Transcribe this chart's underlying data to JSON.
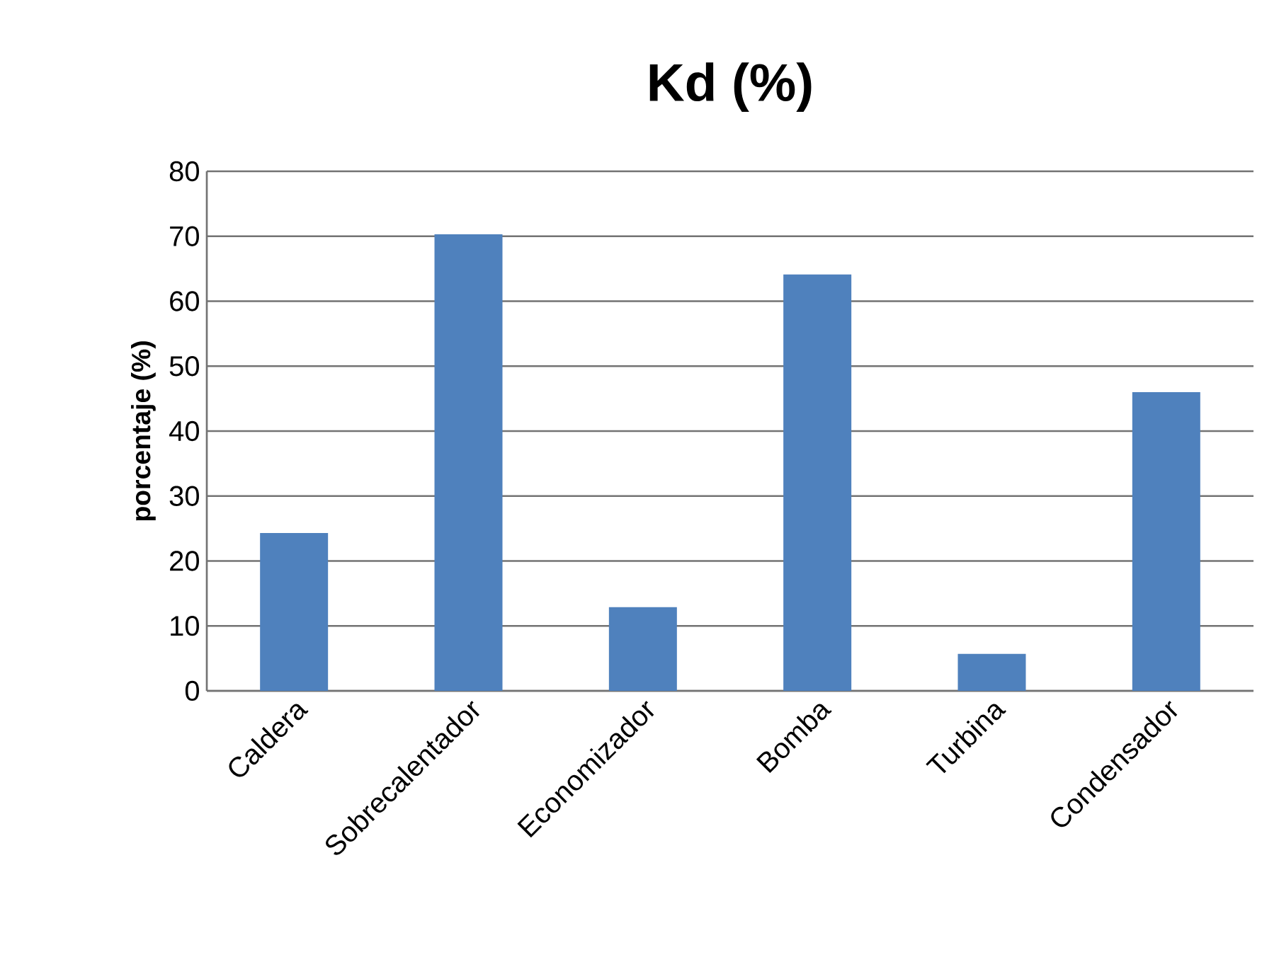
{
  "chart_data": {
    "type": "bar",
    "title": "**Kd (%)**",
    "ylabel": "**porcentaje (%)**",
    "categories": [
      "Caldera",
      "Sobrecalentador",
      "Economizador",
      "Bomba",
      "Turbina",
      "Condensador"
    ],
    "values": [
      24.3,
      70.3,
      12.9,
      64.1,
      5.7,
      46.0
    ],
    "color": "#4f81bd",
    "ylim": [
      0,
      80
    ],
    "yticks": [
      0,
      10,
      20,
      30,
      40,
      50,
      60,
      70,
      80
    ],
    "grid": "y"
  }
}
